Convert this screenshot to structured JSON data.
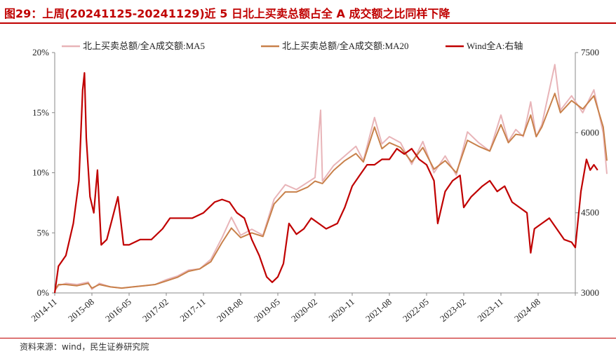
{
  "title": "图29：上周(20241125-20241129)近 5 日北上买卖总额占全 A 成交额之比同样下降",
  "source": "资料来源：wind，民生证券研究院",
  "chart_data": {
    "type": "line",
    "title": "图29：上周(20241125-20241129)近 5 日北上买卖总额占全 A 成交额之比同样下降",
    "x_start": "2014-11",
    "x_end": "2024-11",
    "x_tick_labels": [
      "2014-11",
      "2015-08",
      "2016-05",
      "2017-02",
      "2017-11",
      "2018-08",
      "2019-05",
      "2020-02",
      "2020-11",
      "2021-08",
      "2022-05",
      "2023-02",
      "2023-11",
      "2024-08"
    ],
    "y_left": {
      "ticks": [
        "0%",
        "5%",
        "10%",
        "15%",
        "20%"
      ],
      "range": [
        0,
        20
      ]
    },
    "y_right": {
      "ticks": [
        "3000",
        "4500",
        "6000",
        "7500"
      ],
      "range": [
        3000,
        7500
      ]
    },
    "legend": [
      "北上买卖总额/全A成交额:MA5",
      "北上买卖总额/全A成交额:MA20",
      "Wind全A:右轴"
    ],
    "colors": {
      "ma5": "#e8b4b8",
      "ma20": "#c8804a",
      "windA": "#c00000",
      "title": "#c00000"
    },
    "series": [
      {
        "name": "北上买卖总额/全A成交额:MA5",
        "axis": "left",
        "points": [
          [
            0,
            0.2
          ],
          [
            0.1,
            0.6
          ],
          [
            0.3,
            0.8
          ],
          [
            0.6,
            0.7
          ],
          [
            0.9,
            0.9
          ],
          [
            1.0,
            0.3
          ],
          [
            1.2,
            0.8
          ],
          [
            1.5,
            0.5
          ],
          [
            1.8,
            0.4
          ],
          [
            2.1,
            0.5
          ],
          [
            2.4,
            0.6
          ],
          [
            2.7,
            0.7
          ],
          [
            3.0,
            1.1
          ],
          [
            3.3,
            1.4
          ],
          [
            3.6,
            1.9
          ],
          [
            3.9,
            2.0
          ],
          [
            4.2,
            2.8
          ],
          [
            4.5,
            4.6
          ],
          [
            4.75,
            6.3
          ],
          [
            5.0,
            4.8
          ],
          [
            5.3,
            5.3
          ],
          [
            5.6,
            4.8
          ],
          [
            5.9,
            7.8
          ],
          [
            6.2,
            9.0
          ],
          [
            6.5,
            8.6
          ],
          [
            6.8,
            9.2
          ],
          [
            7.0,
            9.6
          ],
          [
            7.15,
            15.2
          ],
          [
            7.2,
            9.3
          ],
          [
            7.5,
            10.6
          ],
          [
            7.8,
            11.4
          ],
          [
            8.1,
            12.2
          ],
          [
            8.3,
            11.0
          ],
          [
            8.6,
            14.6
          ],
          [
            8.8,
            12.4
          ],
          [
            9.0,
            13.0
          ],
          [
            9.3,
            12.5
          ],
          [
            9.6,
            10.7
          ],
          [
            9.9,
            12.6
          ],
          [
            10.2,
            10.0
          ],
          [
            10.5,
            11.4
          ],
          [
            10.8,
            9.8
          ],
          [
            11.1,
            13.4
          ],
          [
            11.4,
            12.5
          ],
          [
            11.7,
            11.8
          ],
          [
            12.0,
            14.8
          ],
          [
            12.2,
            12.6
          ],
          [
            12.4,
            13.6
          ],
          [
            12.6,
            13.0
          ],
          [
            12.8,
            15.9
          ],
          [
            12.95,
            13.0
          ],
          [
            13.1,
            14.0
          ],
          [
            13.45,
            19.0
          ],
          [
            13.6,
            15.2
          ],
          [
            13.9,
            16.4
          ],
          [
            14.2,
            15.0
          ],
          [
            14.5,
            16.9
          ],
          [
            14.75,
            13.3
          ],
          [
            14.85,
            9.9
          ]
        ]
      },
      {
        "name": "北上买卖总额/全A成交额:MA20",
        "axis": "left",
        "points": [
          [
            0,
            0.2
          ],
          [
            0.1,
            0.7
          ],
          [
            0.3,
            0.7
          ],
          [
            0.6,
            0.6
          ],
          [
            0.9,
            0.8
          ],
          [
            1.0,
            0.4
          ],
          [
            1.2,
            0.7
          ],
          [
            1.5,
            0.5
          ],
          [
            1.8,
            0.4
          ],
          [
            2.1,
            0.5
          ],
          [
            2.4,
            0.6
          ],
          [
            2.7,
            0.7
          ],
          [
            3.0,
            1.0
          ],
          [
            3.3,
            1.3
          ],
          [
            3.6,
            1.8
          ],
          [
            3.9,
            2.0
          ],
          [
            4.2,
            2.6
          ],
          [
            4.5,
            4.2
          ],
          [
            4.75,
            5.4
          ],
          [
            5.0,
            4.6
          ],
          [
            5.3,
            5.0
          ],
          [
            5.6,
            4.7
          ],
          [
            5.9,
            7.4
          ],
          [
            6.2,
            8.4
          ],
          [
            6.5,
            8.4
          ],
          [
            6.8,
            8.8
          ],
          [
            7.0,
            9.3
          ],
          [
            7.2,
            9.1
          ],
          [
            7.5,
            10.2
          ],
          [
            7.8,
            11.0
          ],
          [
            8.1,
            11.6
          ],
          [
            8.3,
            10.9
          ],
          [
            8.6,
            13.8
          ],
          [
            8.8,
            12.0
          ],
          [
            9.0,
            12.5
          ],
          [
            9.3,
            12.1
          ],
          [
            9.6,
            10.9
          ],
          [
            9.9,
            12.1
          ],
          [
            10.2,
            10.3
          ],
          [
            10.5,
            11.0
          ],
          [
            10.8,
            10.0
          ],
          [
            11.1,
            12.7
          ],
          [
            11.4,
            12.2
          ],
          [
            11.7,
            11.8
          ],
          [
            12.0,
            14.0
          ],
          [
            12.2,
            12.5
          ],
          [
            12.4,
            13.2
          ],
          [
            12.6,
            13.1
          ],
          [
            12.8,
            14.8
          ],
          [
            12.95,
            13.0
          ],
          [
            13.1,
            13.8
          ],
          [
            13.45,
            16.6
          ],
          [
            13.6,
            15.0
          ],
          [
            13.9,
            16.0
          ],
          [
            14.2,
            15.3
          ],
          [
            14.5,
            16.4
          ],
          [
            14.75,
            13.8
          ],
          [
            14.85,
            11.0
          ]
        ]
      },
      {
        "name": "Wind全A:右轴",
        "axis": "right",
        "points": [
          [
            0,
            3000
          ],
          [
            0.1,
            3500
          ],
          [
            0.3,
            3700
          ],
          [
            0.5,
            4300
          ],
          [
            0.65,
            5100
          ],
          [
            0.75,
            6800
          ],
          [
            0.8,
            7120
          ],
          [
            0.85,
            5900
          ],
          [
            0.95,
            4800
          ],
          [
            1.05,
            4500
          ],
          [
            1.15,
            5300
          ],
          [
            1.25,
            3900
          ],
          [
            1.4,
            4000
          ],
          [
            1.55,
            4400
          ],
          [
            1.7,
            4800
          ],
          [
            1.85,
            3900
          ],
          [
            2.0,
            3900
          ],
          [
            2.3,
            4000
          ],
          [
            2.6,
            4000
          ],
          [
            2.9,
            4200
          ],
          [
            3.1,
            4400
          ],
          [
            3.4,
            4400
          ],
          [
            3.7,
            4400
          ],
          [
            4.0,
            4500
          ],
          [
            4.3,
            4700
          ],
          [
            4.5,
            4750
          ],
          [
            4.7,
            4700
          ],
          [
            4.9,
            4500
          ],
          [
            5.1,
            4400
          ],
          [
            5.3,
            4000
          ],
          [
            5.5,
            3700
          ],
          [
            5.7,
            3300
          ],
          [
            5.85,
            3200
          ],
          [
            6.0,
            3300
          ],
          [
            6.15,
            3550
          ],
          [
            6.3,
            4300
          ],
          [
            6.5,
            4100
          ],
          [
            6.7,
            4200
          ],
          [
            6.9,
            4400
          ],
          [
            7.1,
            4300
          ],
          [
            7.3,
            4200
          ],
          [
            7.6,
            4300
          ],
          [
            7.8,
            4600
          ],
          [
            8.0,
            5000
          ],
          [
            8.2,
            5200
          ],
          [
            8.4,
            5400
          ],
          [
            8.6,
            5400
          ],
          [
            8.8,
            5500
          ],
          [
            9.0,
            5500
          ],
          [
            9.2,
            5700
          ],
          [
            9.4,
            5600
          ],
          [
            9.6,
            5700
          ],
          [
            9.8,
            5500
          ],
          [
            10.0,
            5400
          ],
          [
            10.2,
            5100
          ],
          [
            10.3,
            4300
          ],
          [
            10.5,
            4900
          ],
          [
            10.7,
            5100
          ],
          [
            10.9,
            5200
          ],
          [
            11.0,
            4600
          ],
          [
            11.2,
            4800
          ],
          [
            11.5,
            5000
          ],
          [
            11.7,
            5100
          ],
          [
            11.9,
            4900
          ],
          [
            12.1,
            5000
          ],
          [
            12.3,
            4700
          ],
          [
            12.5,
            4600
          ],
          [
            12.7,
            4500
          ],
          [
            12.8,
            3750
          ],
          [
            12.9,
            4200
          ],
          [
            13.1,
            4300
          ],
          [
            13.3,
            4400
          ],
          [
            13.5,
            4200
          ],
          [
            13.7,
            4000
          ],
          [
            13.9,
            3950
          ],
          [
            14.0,
            3850
          ],
          [
            14.15,
            4900
          ],
          [
            14.3,
            5500
          ],
          [
            14.4,
            5300
          ],
          [
            14.5,
            5400
          ],
          [
            14.6,
            5300
          ]
        ]
      }
    ]
  }
}
